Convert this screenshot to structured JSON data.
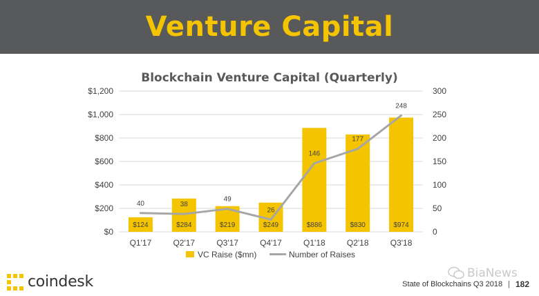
{
  "header": {
    "title": "Venture Capital"
  },
  "chart_data": {
    "type": "bar",
    "title": "Blockchain Venture Capital (Quarterly)",
    "categories": [
      "Q1'17",
      "Q2'17",
      "Q3'17",
      "Q4'17",
      "Q1'18",
      "Q2'18",
      "Q3'18"
    ],
    "series": [
      {
        "name": "VC Raise ($mn)",
        "type": "bar",
        "axis": "left",
        "color": "#f5c400",
        "values": [
          124,
          284,
          219,
          249,
          886,
          830,
          974
        ],
        "labels": [
          "$124",
          "$284",
          "$219",
          "$249",
          "$886",
          "$830",
          "$974"
        ]
      },
      {
        "name": "Number of Raises",
        "type": "line",
        "axis": "right",
        "color": "#a6a6a6",
        "values": [
          40,
          38,
          49,
          26,
          146,
          177,
          248
        ],
        "labels": [
          "40",
          "38",
          "49",
          "26",
          "146",
          "177",
          "248"
        ]
      }
    ],
    "y_left": {
      "ylim": [
        0,
        1200
      ],
      "ticks": [
        "$0",
        "$200",
        "$400",
        "$600",
        "$800",
        "$1,000",
        "$1,200"
      ]
    },
    "y_right": {
      "ylim": [
        0,
        300
      ],
      "ticks": [
        "0",
        "50",
        "100",
        "150",
        "200",
        "250",
        "300"
      ]
    },
    "grid": true,
    "legend": "bottom"
  },
  "footer": {
    "brand": "coindesk",
    "source": "State of Blockchains Q3 2018",
    "separator": "|",
    "page": "182",
    "watermark": "BiaNews"
  }
}
